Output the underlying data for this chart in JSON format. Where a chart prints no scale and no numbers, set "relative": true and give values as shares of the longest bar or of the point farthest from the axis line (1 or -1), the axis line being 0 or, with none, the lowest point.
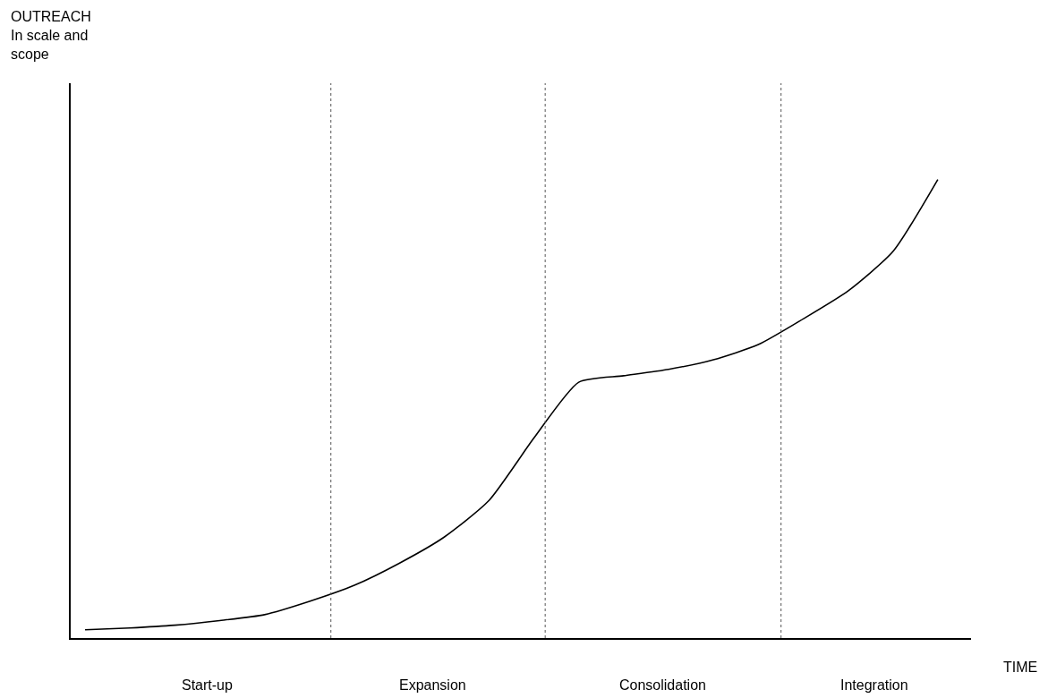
{
  "chart_data": {
    "type": "line",
    "relative": true,
    "xlabel": "TIME",
    "categories": [
      null,
      null,
      null,
      null,
      null,
      null,
      null,
      null,
      null,
      null,
      null,
      null,
      null,
      null,
      null,
      null,
      null,
      null,
      null,
      null
    ],
    "series": [
      {
        "color": "#000000",
        "values": [
          0.018,
          0.022,
          0.028,
          0.038,
          0.051,
          0.08,
          0.115,
          0.163,
          0.22,
          0.3,
          0.436,
          0.558,
          0.572,
          0.586,
          0.607,
          0.64,
          0.696,
          0.757,
          0.843,
          1
        ]
      }
    ],
    "annotations": [
      "OUTREACH\nIn scale and\nscope",
      "Start-up",
      "Expansion",
      "Consolidation",
      "Integration"
    ],
    "marker": "none",
    "line_style": "solid"
  }
}
